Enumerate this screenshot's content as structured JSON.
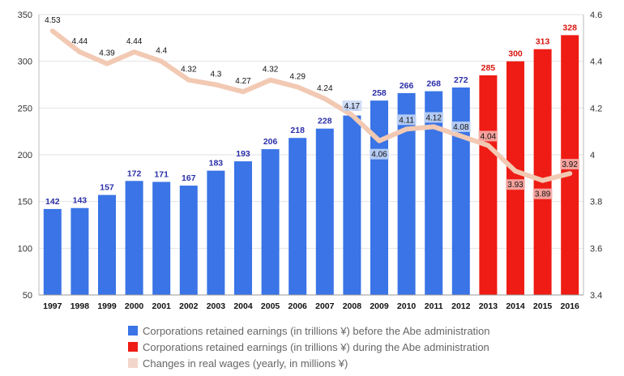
{
  "chart_data": {
    "type": "bar+line",
    "categories": [
      "1997",
      "1998",
      "1999",
      "2000",
      "2001",
      "2002",
      "2003",
      "2004",
      "2005",
      "2006",
      "2007",
      "2008",
      "2009",
      "2010",
      "2011",
      "2012",
      "2013",
      "2014",
      "2015",
      "2016"
    ],
    "series": [
      {
        "name": "Corporations retained earnings (in trillions ¥) before the Abe administration",
        "type": "bar",
        "axis": "left",
        "color": "#3a74e6",
        "values": [
          142,
          143,
          157,
          172,
          171,
          167,
          183,
          193,
          206,
          218,
          228,
          242,
          258,
          266,
          268,
          272,
          null,
          null,
          null,
          null
        ]
      },
      {
        "name": "Corporations retained earnings (in trillions ¥) during the Abe administration",
        "type": "bar",
        "axis": "left",
        "color": "#ee1c14",
        "values": [
          null,
          null,
          null,
          null,
          null,
          null,
          null,
          null,
          null,
          null,
          null,
          null,
          null,
          null,
          null,
          null,
          285,
          300,
          313,
          328
        ]
      },
      {
        "name": "Changes in real wages (yearly, in millions ¥)",
        "type": "line",
        "axis": "right",
        "color": "#f2c9b3",
        "values": [
          4.53,
          4.44,
          4.39,
          4.44,
          4.4,
          4.32,
          4.3,
          4.27,
          4.32,
          4.29,
          4.24,
          4.17,
          4.06,
          4.11,
          4.12,
          4.08,
          4.04,
          3.93,
          3.89,
          3.92
        ]
      }
    ],
    "y_left": {
      "min": 50,
      "max": 350,
      "ticks": [
        "50",
        "100",
        "150",
        "200",
        "250",
        "300",
        "350"
      ]
    },
    "y_right": {
      "min": 3.4,
      "max": 4.6,
      "ticks": [
        "3.4",
        "3.6",
        "3.8",
        "4",
        "4.2",
        "4.4",
        "4.6"
      ]
    },
    "grid": true,
    "legend_position": "bottom"
  }
}
